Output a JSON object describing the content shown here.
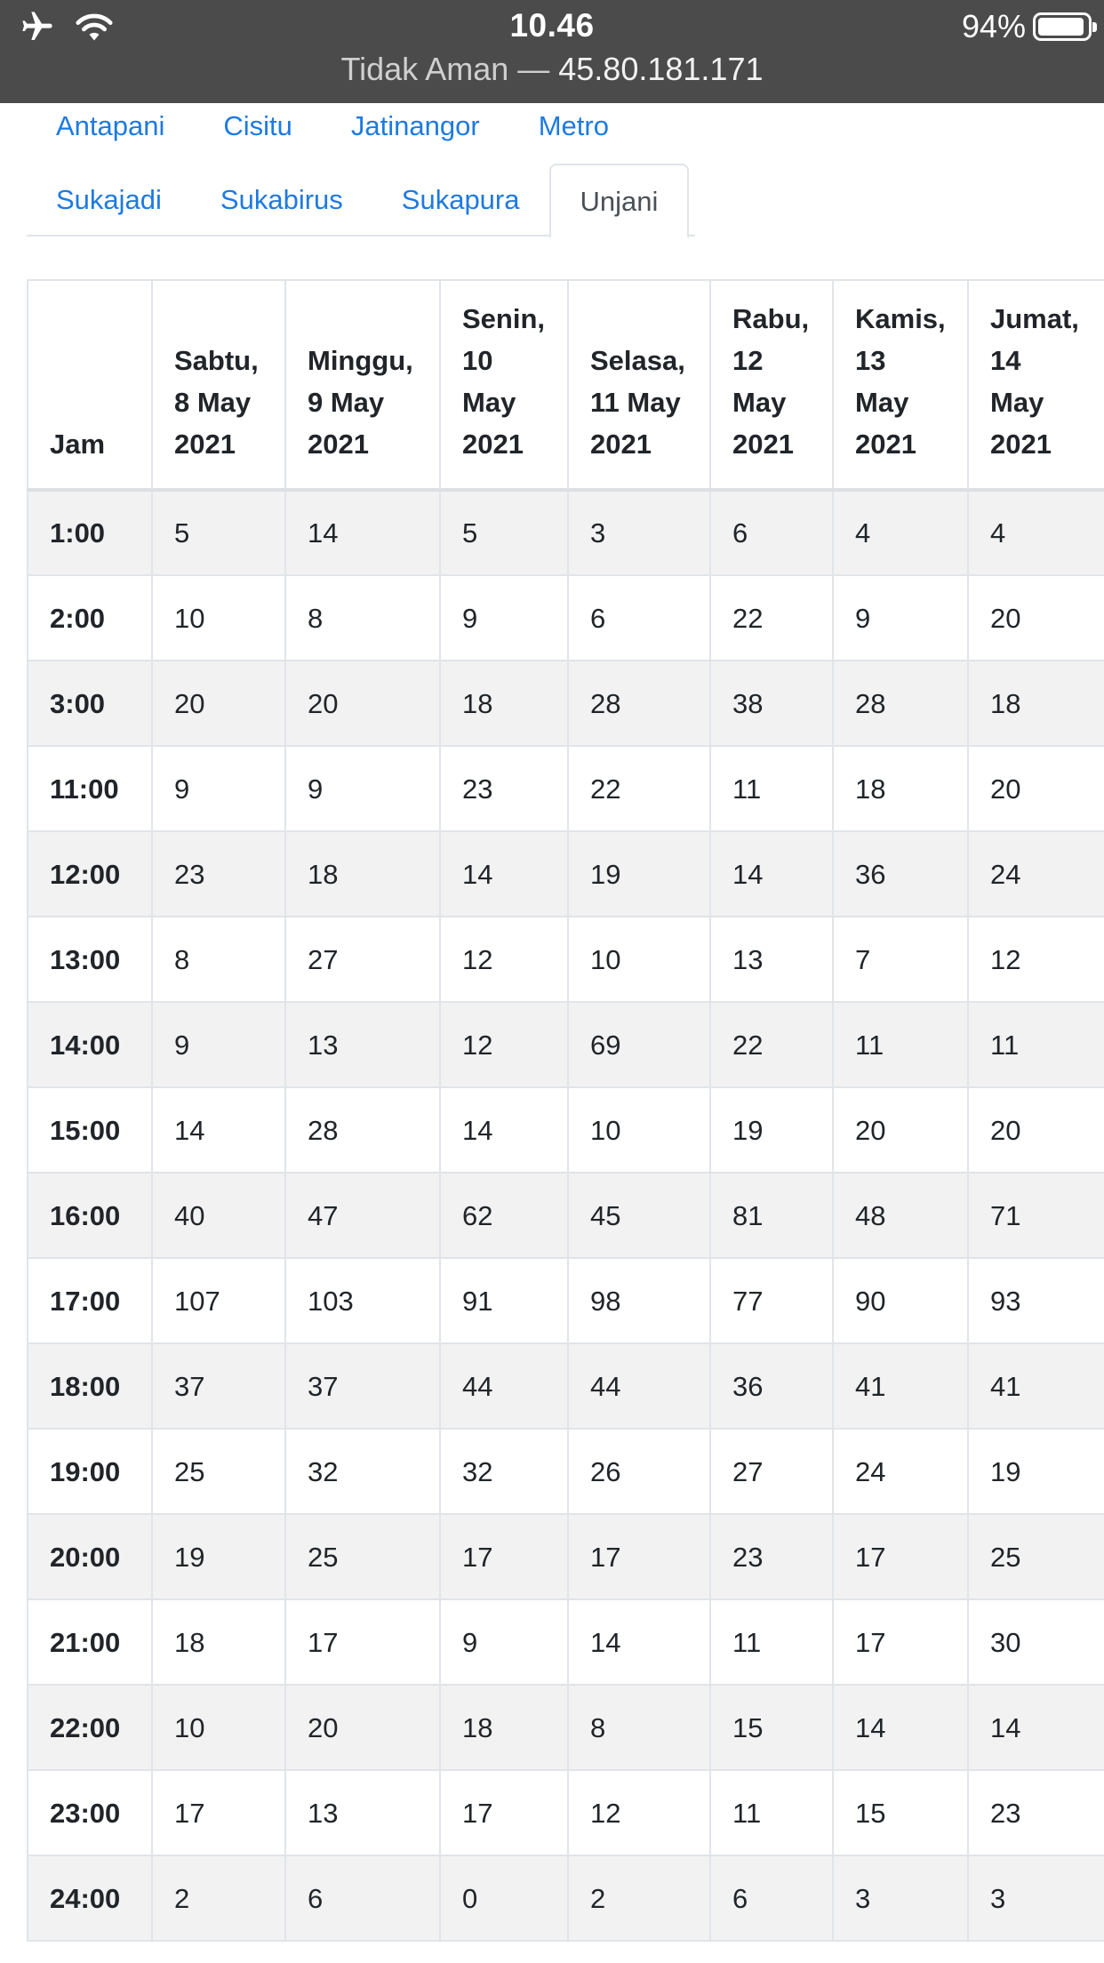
{
  "status_bar": {
    "time": "10.46",
    "battery_percent": "94%",
    "battery_level": 0.94,
    "url_prefix": "Tidak Aman —",
    "url_host": "45.80.181.171",
    "icons": [
      "airplane-mode-icon",
      "wifi-icon",
      "battery-icon"
    ]
  },
  "tabs": {
    "row1": [
      "Antapani",
      "Cisitu",
      "Jatinangor",
      "Metro"
    ],
    "row2": [
      "Sukajadi",
      "Sukabirus",
      "Sukapura",
      "Unjani"
    ],
    "active": "Unjani",
    "link_color": "#1e7ae0"
  },
  "table": {
    "columns": [
      [
        "Jam"
      ],
      [
        "Sabtu,",
        "8 May",
        "2021"
      ],
      [
        "Minggu,",
        "9 May",
        "2021"
      ],
      [
        "Senin,",
        "10",
        "May",
        "2021"
      ],
      [
        "Selasa,",
        "11 May",
        "2021"
      ],
      [
        "Rabu,",
        "12",
        "May",
        "2021"
      ],
      [
        "Kamis,",
        "13",
        "May",
        "2021"
      ],
      [
        "Jumat,",
        "14",
        "May",
        "2021"
      ]
    ],
    "rows": [
      [
        "1:00",
        "5",
        "14",
        "5",
        "3",
        "6",
        "4",
        "4"
      ],
      [
        "2:00",
        "10",
        "8",
        "9",
        "6",
        "22",
        "9",
        "20"
      ],
      [
        "3:00",
        "20",
        "20",
        "18",
        "28",
        "38",
        "28",
        "18"
      ],
      [
        "11:00",
        "9",
        "9",
        "23",
        "22",
        "11",
        "18",
        "20"
      ],
      [
        "12:00",
        "23",
        "18",
        "14",
        "19",
        "14",
        "36",
        "24"
      ],
      [
        "13:00",
        "8",
        "27",
        "12",
        "10",
        "13",
        "7",
        "12"
      ],
      [
        "14:00",
        "9",
        "13",
        "12",
        "69",
        "22",
        "11",
        "11"
      ],
      [
        "15:00",
        "14",
        "28",
        "14",
        "10",
        "19",
        "20",
        "20"
      ],
      [
        "16:00",
        "40",
        "47",
        "62",
        "45",
        "81",
        "48",
        "71"
      ],
      [
        "17:00",
        "107",
        "103",
        "91",
        "98",
        "77",
        "90",
        "93"
      ],
      [
        "18:00",
        "37",
        "37",
        "44",
        "44",
        "36",
        "41",
        "41"
      ],
      [
        "19:00",
        "25",
        "32",
        "32",
        "26",
        "27",
        "24",
        "19"
      ],
      [
        "20:00",
        "19",
        "25",
        "17",
        "17",
        "23",
        "17",
        "25"
      ],
      [
        "21:00",
        "18",
        "17",
        "9",
        "14",
        "11",
        "17",
        "30"
      ],
      [
        "22:00",
        "10",
        "20",
        "18",
        "8",
        "15",
        "14",
        "14"
      ],
      [
        "23:00",
        "17",
        "13",
        "17",
        "12",
        "11",
        "15",
        "23"
      ],
      [
        "24:00",
        "2",
        "6",
        "0",
        "2",
        "6",
        "3",
        "3"
      ]
    ]
  }
}
